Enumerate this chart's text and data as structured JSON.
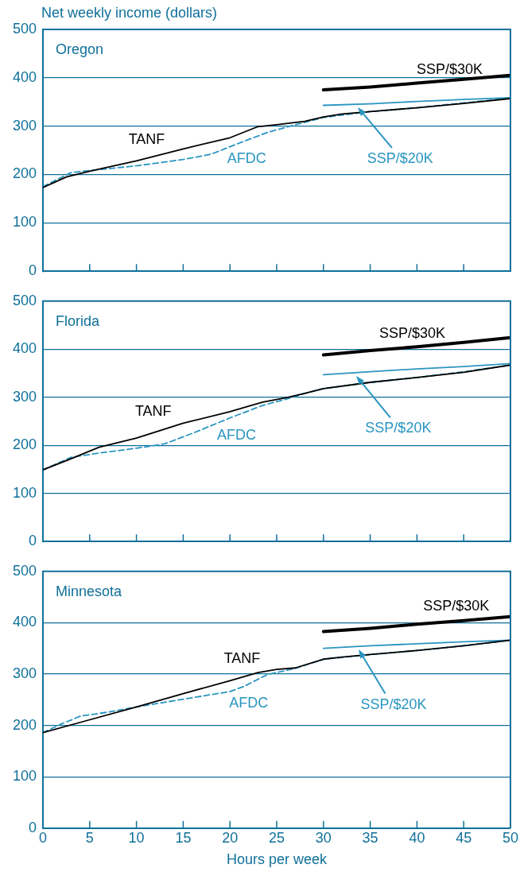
{
  "chart_data": [
    {
      "type": "line",
      "title": "Oregon",
      "ylabel": "Net weekly income (dollars)",
      "xlim": [
        0,
        50
      ],
      "xticks": [
        0,
        5,
        10,
        15,
        20,
        25,
        30,
        35,
        40,
        45,
        50
      ],
      "ylim": [
        0,
        500
      ],
      "yticks": [
        0,
        100,
        200,
        300,
        400,
        500
      ],
      "grid": "y",
      "legend": false,
      "marker": "none",
      "tick_labels": "y",
      "series": [
        {
          "name": "TANF",
          "color": "#000000",
          "line_style": "solid",
          "x": [
            0,
            2.5,
            5,
            10,
            15,
            20,
            23,
            25,
            28,
            30,
            32,
            35,
            40,
            45,
            50
          ],
          "values": [
            173,
            195,
            207,
            228,
            253,
            276,
            299,
            303,
            310,
            319,
            325,
            330,
            338,
            347,
            357
          ]
        },
        {
          "name": "AFDC",
          "color": "#2a95c0",
          "line_style": "dashed",
          "x": [
            0,
            3,
            6,
            10,
            15,
            18,
            21,
            24,
            27,
            30,
            35,
            40,
            45,
            50
          ],
          "values": [
            175,
            204,
            210,
            218,
            231,
            242,
            265,
            287,
            303,
            318,
            330,
            338,
            348,
            358
          ]
        },
        {
          "name": "SSP/$30K",
          "color": "#000000",
          "line_style": "solid",
          "x": [
            30,
            35,
            40,
            45,
            50
          ],
          "values": [
            375,
            381,
            389,
            397,
            405
          ]
        },
        {
          "name": "SSP/$20K",
          "color": "#2a95c0",
          "line_style": "solid",
          "x": [
            30,
            35,
            40,
            45,
            50
          ],
          "values": [
            343,
            346,
            351,
            355,
            359
          ]
        }
      ]
    },
    {
      "type": "line",
      "title": "Florida",
      "xlim": [
        0,
        50
      ],
      "xticks": [
        0,
        5,
        10,
        15,
        20,
        25,
        30,
        35,
        40,
        45,
        50
      ],
      "ylim": [
        0,
        500
      ],
      "yticks": [
        0,
        100,
        200,
        300,
        400,
        500
      ],
      "grid": "y",
      "legend": false,
      "marker": "none",
      "tick_labels": "y",
      "series": [
        {
          "name": "TANF",
          "color": "#000000",
          "line_style": "solid",
          "x": [
            0,
            3,
            6,
            10,
            15,
            20,
            23.5,
            26,
            28,
            30,
            35,
            40,
            45,
            50
          ],
          "values": [
            149,
            172,
            196,
            215,
            246,
            270,
            290,
            299,
            308,
            318,
            331,
            341,
            352,
            367
          ]
        },
        {
          "name": "AFDC",
          "color": "#2a95c0",
          "line_style": "dashed",
          "x": [
            0,
            3,
            6,
            10,
            13,
            16,
            20,
            23.5,
            26,
            28,
            30,
            35,
            40,
            45,
            50
          ],
          "values": [
            149,
            175,
            184,
            194,
            203,
            225,
            257,
            283,
            296,
            308,
            318,
            331,
            341,
            353,
            367
          ]
        },
        {
          "name": "SSP/$30K",
          "color": "#000000",
          "line_style": "solid",
          "x": [
            30,
            35,
            40,
            45,
            50
          ],
          "values": [
            388,
            397,
            405,
            414,
            424
          ]
        },
        {
          "name": "SSP/$20K",
          "color": "#2a95c0",
          "line_style": "solid",
          "x": [
            30,
            35,
            40,
            45,
            50
          ],
          "values": [
            347,
            353,
            359,
            364,
            370
          ]
        }
      ]
    },
    {
      "type": "line",
      "title": "Minnesota",
      "xlabel": "Hours per week",
      "xlim": [
        0,
        50
      ],
      "xticks": [
        0,
        5,
        10,
        15,
        20,
        25,
        30,
        35,
        40,
        45,
        50
      ],
      "ylim": [
        0,
        500
      ],
      "yticks": [
        0,
        100,
        200,
        300,
        400,
        500
      ],
      "grid": "y",
      "legend": false,
      "marker": "none",
      "series": [
        {
          "name": "TANF",
          "color": "#000000",
          "line_style": "solid",
          "x": [
            0,
            5,
            10,
            15,
            20,
            23,
            25,
            27,
            30,
            32,
            35,
            40,
            45,
            50
          ],
          "values": [
            186,
            211,
            236,
            262,
            287,
            303,
            309,
            312,
            329,
            333,
            338,
            346,
            355,
            366
          ]
        },
        {
          "name": "AFDC",
          "color": "#2a95c0",
          "line_style": "dashed",
          "x": [
            0,
            2,
            4,
            7,
            10,
            15,
            20,
            21.5,
            24,
            27,
            30,
            35,
            40,
            45,
            50
          ],
          "values": [
            186,
            203,
            218,
            226,
            236,
            251,
            266,
            276,
            299,
            311,
            329,
            338,
            346,
            355,
            366
          ]
        },
        {
          "name": "SSP/$30K",
          "color": "#000000",
          "line_style": "solid",
          "x": [
            30,
            35,
            40,
            45,
            50
          ],
          "values": [
            383,
            389,
            397,
            404,
            412
          ]
        },
        {
          "name": "SSP/$20K",
          "color": "#2a95c0",
          "line_style": "solid",
          "x": [
            30,
            35,
            40,
            45,
            50
          ],
          "values": [
            350,
            355,
            359,
            363,
            366
          ]
        }
      ]
    }
  ]
}
